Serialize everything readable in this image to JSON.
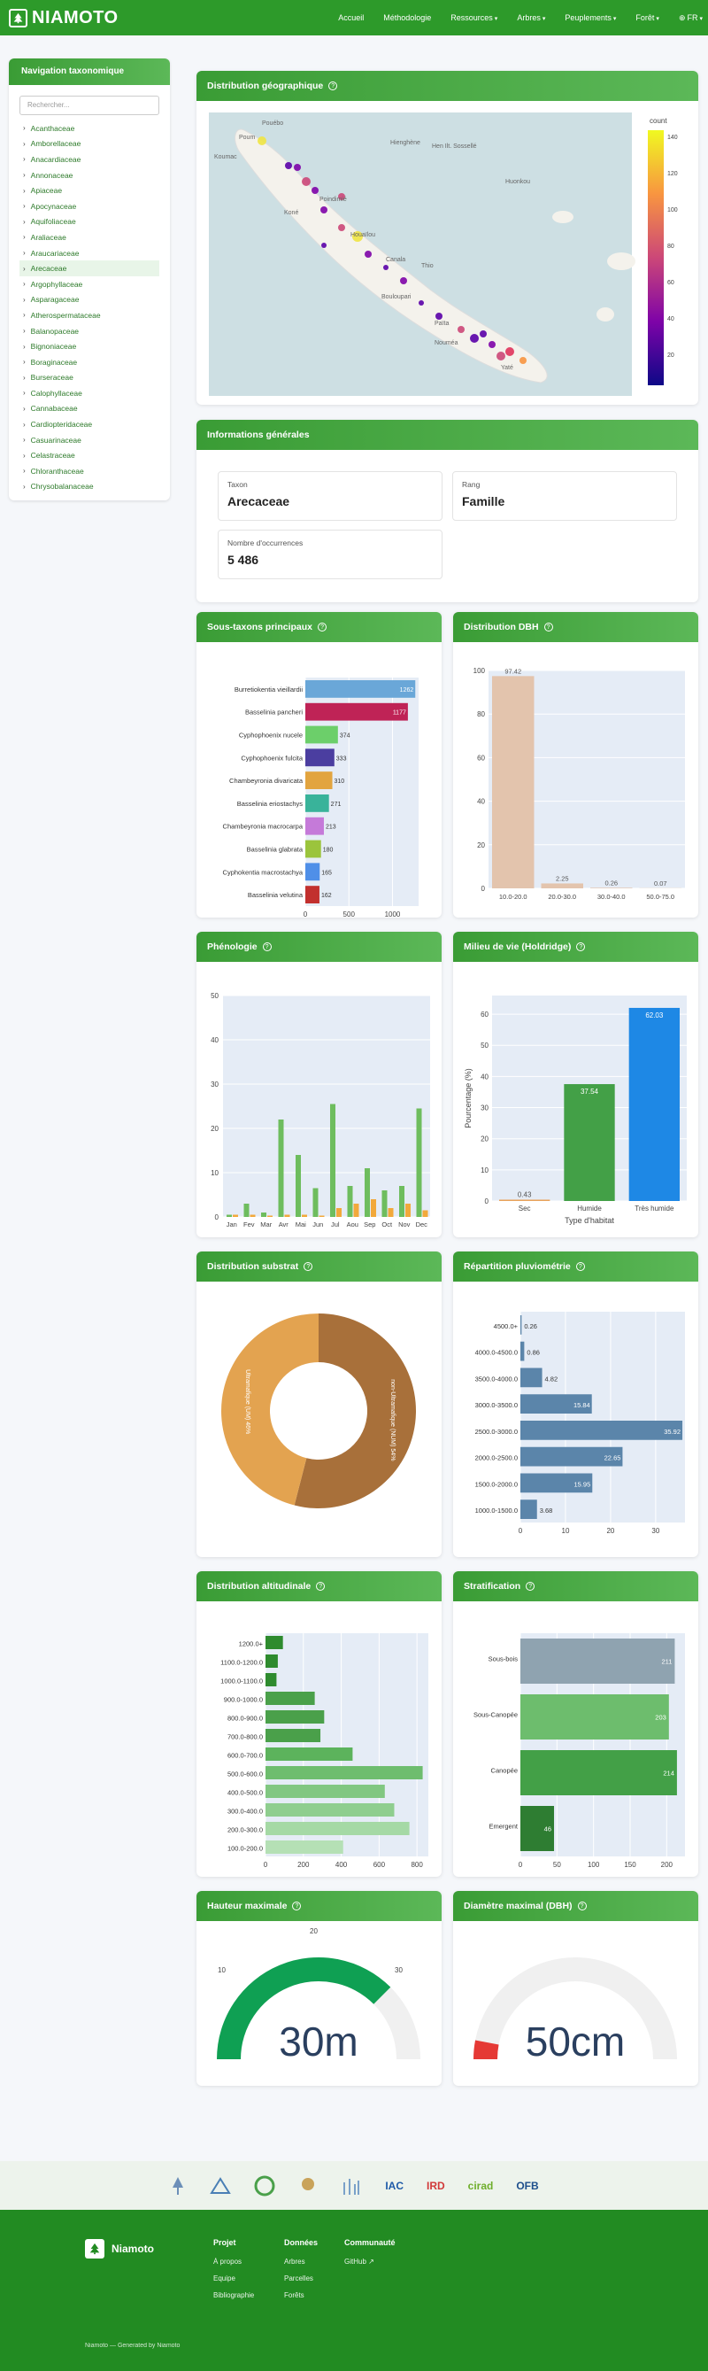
{
  "header": {
    "brand": "NIAMOTO",
    "nav": [
      {
        "label": "Accueil",
        "chev": ""
      },
      {
        "label": "Méthodologie",
        "chev": ""
      },
      {
        "label": "Ressources",
        "chev": "⌄"
      },
      {
        "label": "Arbres",
        "chev": "⌄"
      },
      {
        "label": "Peuplements",
        "chev": "⌄"
      },
      {
        "label": "Forêt",
        "chev": "⌄"
      },
      {
        "label": "FR",
        "chev": "⌄"
      }
    ]
  },
  "sidebar": {
    "title": "Navigation taxonomique",
    "search_placeholder": "Rechercher...",
    "items": [
      "Acanthaceae",
      "Amborellaceae",
      "Anacardiaceae",
      "Annonaceae",
      "Apiaceae",
      "Apocynaceae",
      "Aquifoliaceae",
      "Araliaceae",
      "Araucariaceae",
      "Arecaceae",
      "Argophyllaceae",
      "Asparagaceae",
      "Atherospermataceae",
      "Balanopaceae",
      "Bignoniaceae",
      "Boraginaceae",
      "Burseraceae",
      "Calophyllaceae",
      "Cannabaceae",
      "Cardiopteridaceae",
      "Casuarinaceae",
      "Celastraceae",
      "Chloranthaceae",
      "Chrysobalanaceae"
    ],
    "active_index": 9
  },
  "map_card": {
    "title": "Distribution géographique",
    "colorbar_title": "count",
    "colorbar_ticks": [
      "140",
      "120",
      "100",
      "80",
      "60",
      "40",
      "20"
    ],
    "places": [
      "Poum",
      "Koumac",
      "Pouébo",
      "Hienghène",
      "Koné",
      "Poindimié",
      "Houaïlou",
      "Canala",
      "Thio",
      "Bouloupari",
      "Païta",
      "Nouméa",
      "Yaté",
      "Hen Ilt. Sossellé",
      "Huonkou"
    ]
  },
  "info_card": {
    "title": "Informations générales",
    "taxon_label": "Taxon",
    "taxon_value": "Arecaceae",
    "rank_label": "Rang",
    "rank_value": "Famille",
    "occ_label": "Nombre d'occurrences",
    "occ_value": "5 486"
  },
  "subtaxa_card": {
    "title": "Sous-taxons principaux",
    "chart_data": {
      "type": "bar",
      "orientation": "horizontal",
      "categories": [
        "Burretiokentia vieillardii",
        "Basselinia pancheri",
        "Cyphophoenix nucele",
        "Cyphophoenix fulcita",
        "Chambeyronia divaricata",
        "Basselinia eriostachys",
        "Chambeyronia macrocarpa",
        "Basselinia glabrata",
        "Cyphokentia macrostachya",
        "Basselinia velutina"
      ],
      "values": [
        1262,
        1177,
        374,
        333,
        310,
        271,
        213,
        180,
        165,
        162
      ],
      "colors": [
        "#6aa7d8",
        "#bf2356",
        "#6ccf6a",
        "#4b3ea0",
        "#e2a43f",
        "#39b39a",
        "#c57ad9",
        "#9bc43c",
        "#4f8fe8",
        "#c2302e"
      ],
      "xticks": [
        0,
        500,
        1000
      ],
      "xlim": [
        0,
        1300
      ]
    }
  },
  "dbh_card": {
    "title": "Distribution DBH",
    "chart_data": {
      "type": "bar",
      "categories": [
        "10.0-20.0",
        "20.0-30.0",
        "30.0-40.0",
        "50.0-75.0"
      ],
      "values": [
        97.42,
        2.25,
        0.26,
        0.07
      ],
      "yticks": [
        0,
        20,
        40,
        60,
        80,
        100
      ],
      "ylim": [
        0,
        100
      ]
    }
  },
  "phenology_card": {
    "title": "Phénologie",
    "chart_data": {
      "type": "bar",
      "categories": [
        "Jan",
        "Fev",
        "Mar",
        "Avr",
        "Mai",
        "Jun",
        "Jul",
        "Aou",
        "Sep",
        "Oct",
        "Nov",
        "Dec"
      ],
      "series": [
        {
          "color": "#6ebd5e",
          "values": [
            0.5,
            3,
            1,
            22,
            14,
            6.5,
            25.5,
            7,
            11,
            6,
            7,
            24.5
          ]
        },
        {
          "color": "#f2a93b",
          "values": [
            0.5,
            0.5,
            0.3,
            0.5,
            0.5,
            0.3,
            2,
            3,
            4,
            2,
            3,
            1.5
          ]
        }
      ],
      "yticks": [
        0,
        10,
        20,
        30,
        40,
        50
      ],
      "ylim": [
        0,
        50
      ]
    }
  },
  "habitat_card": {
    "title": "Milieu de vie (Holdridge)",
    "chart_data": {
      "type": "bar",
      "categories": [
        "Sec",
        "Humide",
        "Très humide"
      ],
      "values": [
        0.43,
        37.54,
        62.03
      ],
      "colors": [
        "#e9a35a",
        "#43a047",
        "#1e88e5"
      ],
      "yticks": [
        0,
        10,
        20,
        30,
        40,
        50,
        60
      ],
      "ylim": [
        0,
        66
      ],
      "ylabel": "Pourcentage (%)",
      "xlabel": "Type d'habitat"
    }
  },
  "substrate_card": {
    "title": "Distribution substrat",
    "chart_data": {
      "type": "pie",
      "labels": [
        "non-Ultramafique (NUM)",
        "Ultramafique (UM)"
      ],
      "values": [
        54,
        46
      ],
      "colors": [
        "#a8703a",
        "#e3a350"
      ],
      "text": [
        "non-Ultramafique (NUM) 54%",
        "Ultramafique (UM) 46%"
      ]
    }
  },
  "rain_card": {
    "title": "Répartition pluviométrie",
    "chart_data": {
      "type": "bar",
      "orientation": "horizontal",
      "categories": [
        "4500.0+",
        "4000.0-4500.0",
        "3500.0-4000.0",
        "3000.0-3500.0",
        "2500.0-3000.0",
        "2000.0-2500.0",
        "1500.0-2000.0",
        "1000.0-1500.0"
      ],
      "values": [
        0.26,
        0.86,
        4.82,
        15.84,
        35.92,
        22.65,
        15.95,
        3.68
      ],
      "xticks": [
        0,
        10,
        20,
        30
      ],
      "xlim": [
        0,
        36.5
      ]
    }
  },
  "altitude_card": {
    "title": "Distribution altitudinale",
    "chart_data": {
      "type": "bar",
      "orientation": "horizontal",
      "categories": [
        "1200.0+",
        "1100.0-1200.0",
        "1000.0-1100.0",
        "900.0-1000.0",
        "800.0-900.0",
        "700.0-800.0",
        "600.0-700.0",
        "500.0-600.0",
        "400.0-500.0",
        "300.0-400.0",
        "200.0-300.0",
        "100.0-200.0"
      ],
      "values": [
        92,
        65,
        58,
        260,
        310,
        290,
        460,
        830,
        630,
        680,
        760,
        410
      ],
      "colors": [
        "#2e8b2e",
        "#2e8b2e",
        "#2e8b2e",
        "#4aa04a",
        "#4aa04a",
        "#4aa04a",
        "#5cb35c",
        "#6ebd6e",
        "#81c781",
        "#8fce8f",
        "#a5d9a5",
        "#b5e0b5"
      ],
      "xticks": [
        0,
        200,
        400,
        600,
        800
      ],
      "xlim": [
        0,
        860
      ]
    }
  },
  "strat_card": {
    "title": "Stratification",
    "chart_data": {
      "type": "bar",
      "orientation": "horizontal",
      "categories": [
        "Sous-bois",
        "Sous-Canopée",
        "Canopée",
        "Emergent"
      ],
      "values": [
        211,
        203,
        214,
        46
      ],
      "colors": [
        "#8fa3b0",
        "#6dbd6d",
        "#43a047",
        "#2e7d32"
      ],
      "xticks": [
        0,
        50,
        100,
        150,
        200
      ],
      "xlim": [
        0,
        225
      ]
    }
  },
  "height_card": {
    "title": "Hauteur maximale",
    "value_text": "30m",
    "fraction": 0.75,
    "ticks": [
      "10",
      "20",
      "30"
    ],
    "color": "#0fa053"
  },
  "diam_card": {
    "title": "Diamètre maximal (DBH)",
    "value_text": "50cm",
    "fraction": 0.06,
    "color": "#e53935"
  },
  "partners": [
    {
      "name": "IAC",
      "color": "#1e5aa8"
    },
    {
      "name": "IRD",
      "color": "#d13a3a"
    },
    {
      "name": "cirad",
      "color": "#6fae2c"
    },
    {
      "name": "OFB",
      "color": "#1e4f8c"
    }
  ],
  "footer": {
    "brand": "Niamoto",
    "cols": [
      {
        "title": "Projet",
        "links": [
          "À propos",
          "Equipe",
          "Bibliographie"
        ]
      },
      {
        "title": "Données",
        "links": [
          "Arbres",
          "Parcelles",
          "Forêts"
        ]
      },
      {
        "title": "Communauté",
        "links": [
          "GitHub ↗"
        ]
      }
    ],
    "copyright": "Niamoto — Generated by Niamoto"
  }
}
